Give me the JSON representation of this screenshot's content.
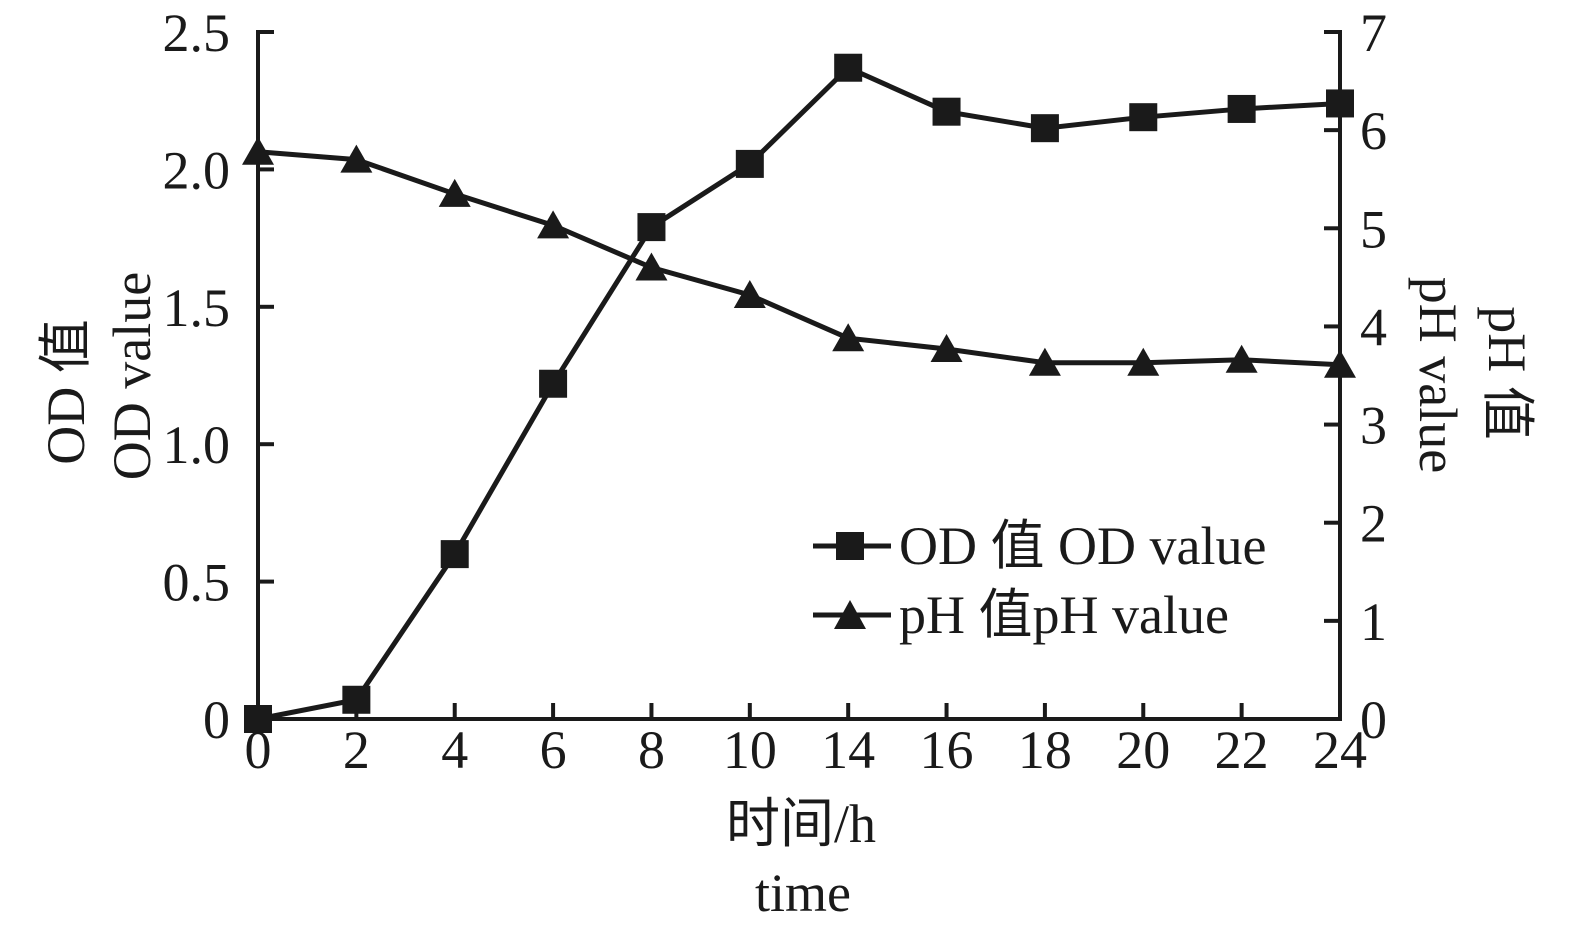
{
  "figure": {
    "background": "#ffffff",
    "ink_color": "#1a1a1a"
  },
  "chart_data": {
    "type": "line",
    "categories": [
      "0",
      "2",
      "4",
      "6",
      "8",
      "10",
      "14",
      "16",
      "18",
      "20",
      "22",
      "24"
    ],
    "series": [
      {
        "name": "OD 值 OD value",
        "axis": "left",
        "marker": "square",
        "color": "#1a1a1a",
        "values": [
          0.0,
          0.07,
          0.6,
          1.22,
          1.79,
          2.02,
          2.37,
          2.21,
          2.15,
          2.19,
          2.22,
          2.24
        ]
      },
      {
        "name": "pH 值pH value",
        "axis": "right",
        "marker": "triangle",
        "color": "#1a1a1a",
        "values": [
          5.78,
          5.7,
          5.35,
          5.03,
          4.6,
          4.32,
          3.88,
          3.77,
          3.63,
          3.63,
          3.66,
          3.61
        ]
      }
    ],
    "x_axis": {
      "title_zh": "时间/h",
      "title_en": "time",
      "tick_labels": [
        "0",
        "2",
        "4",
        "6",
        "8",
        "10",
        "14",
        "16",
        "18",
        "20",
        "22",
        "24"
      ]
    },
    "y_left": {
      "title_zh": "OD 值",
      "title_en": "OD value",
      "min": 0,
      "max": 2.5,
      "ticks": [
        0,
        0.5,
        1.0,
        1.5,
        2.0,
        2.5
      ],
      "tick_labels": [
        "0",
        "0.5",
        "1.0",
        "1.5",
        "2.0",
        "2.5"
      ]
    },
    "y_right": {
      "title_zh": "pH 值",
      "title_en": "pH value",
      "min": 0,
      "max": 7,
      "ticks": [
        0,
        1,
        2,
        3,
        4,
        5,
        6,
        7
      ],
      "tick_labels": [
        "0",
        "1",
        "2",
        "3",
        "4",
        "5",
        "6",
        "7"
      ]
    },
    "grid": false,
    "legend_position": "inside-right-middle",
    "title": ""
  }
}
